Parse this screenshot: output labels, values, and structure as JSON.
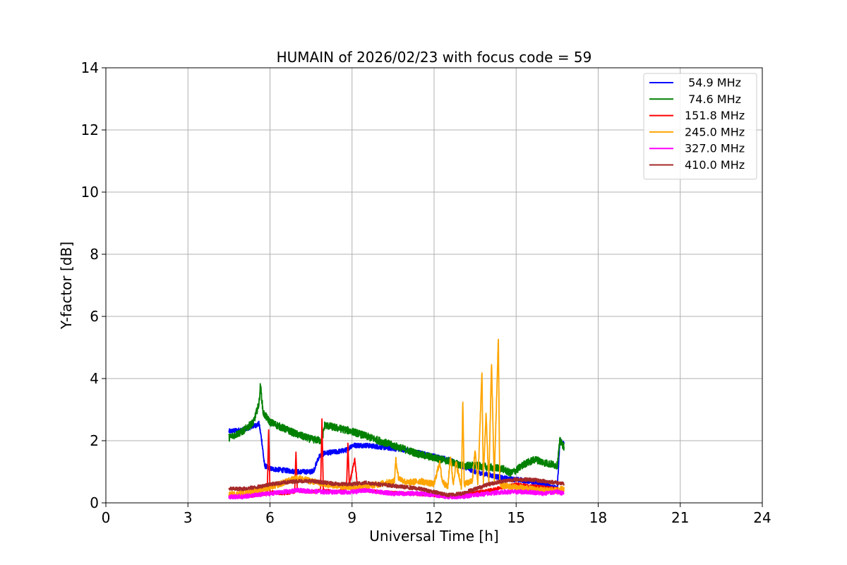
{
  "chart_data": {
    "type": "line",
    "title": "HUMAIN of 2026/02/23 with focus code = 59",
    "xlabel": "Universal Time [h]",
    "ylabel": "Y-factor [dB]",
    "xlim": [
      0,
      24
    ],
    "ylim": [
      0,
      14
    ],
    "xticks": [
      0,
      3,
      6,
      9,
      12,
      15,
      18,
      21,
      24
    ],
    "yticks": [
      0,
      2,
      4,
      6,
      8,
      10,
      12,
      14
    ],
    "grid": true,
    "legend_position": "top-right",
    "series": [
      {
        "name": " 54.9 MHz",
        "color": "#0000ff",
        "noise": 0.08,
        "x": [
          4.5,
          5.0,
          5.5,
          5.6,
          5.7,
          5.8,
          6.0,
          6.5,
          7.0,
          7.5,
          7.6,
          7.8,
          8.0,
          8.5,
          8.8,
          9.0,
          9.5,
          10.0,
          10.5,
          11.0,
          11.5,
          12.0,
          12.5,
          13.0,
          13.5,
          14.0,
          14.5,
          15.0,
          15.5,
          16.0,
          16.4,
          16.5,
          16.6,
          16.75
        ],
        "y": [
          2.3,
          2.35,
          2.5,
          2.55,
          2.0,
          1.2,
          1.1,
          1.05,
          1.0,
          1.0,
          1.05,
          1.5,
          1.6,
          1.65,
          1.7,
          1.85,
          1.85,
          1.8,
          1.75,
          1.7,
          1.6,
          1.5,
          1.4,
          1.2,
          1.0,
          0.9,
          0.8,
          0.75,
          0.7,
          0.6,
          0.5,
          0.4,
          2.0,
          1.9
        ]
      },
      {
        "name": " 74.6 MHz",
        "color": "#008000",
        "noise": 0.12,
        "x": [
          4.5,
          5.0,
          5.4,
          5.6,
          5.65,
          5.75,
          6.0,
          6.5,
          7.0,
          7.5,
          7.9,
          8.0,
          8.5,
          9.0,
          9.5,
          10.0,
          10.5,
          11.0,
          11.5,
          12.0,
          12.5,
          13.0,
          13.5,
          14.0,
          14.5,
          14.8,
          15.0,
          15.3,
          15.7,
          16.0,
          16.5,
          16.6,
          16.75
        ],
        "y": [
          2.1,
          2.3,
          2.6,
          3.2,
          3.8,
          2.9,
          2.6,
          2.4,
          2.2,
          2.05,
          2.0,
          2.5,
          2.4,
          2.3,
          2.15,
          2.0,
          1.85,
          1.7,
          1.55,
          1.45,
          1.35,
          1.2,
          1.2,
          1.15,
          1.1,
          0.95,
          1.05,
          1.25,
          1.4,
          1.3,
          1.2,
          2.0,
          1.8
        ]
      },
      {
        "name": "151.8 MHz",
        "color": "#ff0000",
        "noise": 0.05,
        "x": [
          4.5,
          5.0,
          5.5,
          5.9,
          5.95,
          6.0,
          6.5,
          6.9,
          6.95,
          7.0,
          7.5,
          7.85,
          7.9,
          7.95,
          8.5,
          8.8,
          8.85,
          8.9,
          9.1,
          9.2,
          9.5,
          10.0,
          11.0,
          12.0,
          12.5,
          13.0,
          14.0,
          14.5,
          15.0,
          15.5,
          16.0,
          16.5,
          16.75
        ],
        "y": [
          0.2,
          0.2,
          0.25,
          0.3,
          2.4,
          0.35,
          0.3,
          0.35,
          1.6,
          0.4,
          0.35,
          0.4,
          2.7,
          0.4,
          0.35,
          0.5,
          1.9,
          0.6,
          1.4,
          0.5,
          0.4,
          0.35,
          0.3,
          0.25,
          0.2,
          0.25,
          0.4,
          0.5,
          0.6,
          0.55,
          0.5,
          0.45,
          0.4
        ]
      },
      {
        "name": "245.0 MHz",
        "color": "#ffa500",
        "noise": 0.1,
        "x": [
          4.5,
          5.0,
          6.0,
          7.0,
          8.0,
          9.0,
          10.0,
          10.55,
          10.6,
          10.7,
          11.0,
          11.5,
          12.0,
          12.2,
          12.3,
          12.5,
          12.6,
          12.7,
          12.8,
          13.0,
          13.05,
          13.1,
          13.4,
          13.5,
          13.6,
          13.75,
          13.8,
          13.9,
          14.0,
          14.1,
          14.2,
          14.35,
          14.4,
          14.5,
          15.0,
          15.5,
          16.0,
          16.5,
          16.75
        ],
        "y": [
          0.25,
          0.3,
          0.5,
          0.8,
          0.6,
          0.5,
          0.6,
          0.7,
          1.4,
          0.8,
          0.65,
          0.7,
          0.6,
          1.3,
          0.7,
          0.5,
          1.5,
          0.6,
          1.3,
          0.5,
          3.3,
          0.6,
          0.7,
          1.7,
          0.6,
          4.2,
          0.7,
          2.9,
          0.6,
          4.5,
          0.7,
          5.3,
          0.6,
          0.55,
          0.5,
          0.45,
          0.4,
          0.4,
          0.45
        ]
      },
      {
        "name": "327.0 MHz",
        "color": "#ff00ff",
        "noise": 0.07,
        "x": [
          4.5,
          5.0,
          5.5,
          6.0,
          7.0,
          8.0,
          9.0,
          9.5,
          10.0,
          10.5,
          11.0,
          11.5,
          12.0,
          12.5,
          13.0,
          13.5,
          14.0,
          14.5,
          15.0,
          15.5,
          16.0,
          16.5,
          16.75
        ],
        "y": [
          0.2,
          0.2,
          0.25,
          0.3,
          0.4,
          0.35,
          0.35,
          0.4,
          0.35,
          0.3,
          0.3,
          0.3,
          0.25,
          0.2,
          0.2,
          0.25,
          0.3,
          0.35,
          0.35,
          0.35,
          0.3,
          0.35,
          0.3
        ]
      },
      {
        "name": "410.0 MHz",
        "color": "#a52a2a",
        "noise": 0.06,
        "x": [
          4.5,
          5.0,
          5.5,
          6.0,
          6.5,
          7.0,
          7.5,
          8.0,
          8.5,
          9.0,
          9.5,
          10.0,
          10.5,
          11.0,
          11.5,
          12.0,
          12.5,
          13.0,
          13.5,
          14.0,
          14.5,
          15.0,
          15.5,
          16.0,
          16.5,
          16.75
        ],
        "y": [
          0.45,
          0.45,
          0.5,
          0.6,
          0.65,
          0.7,
          0.7,
          0.65,
          0.6,
          0.6,
          0.65,
          0.6,
          0.55,
          0.5,
          0.45,
          0.35,
          0.25,
          0.3,
          0.45,
          0.6,
          0.7,
          0.75,
          0.75,
          0.7,
          0.65,
          0.6
        ]
      }
    ]
  }
}
